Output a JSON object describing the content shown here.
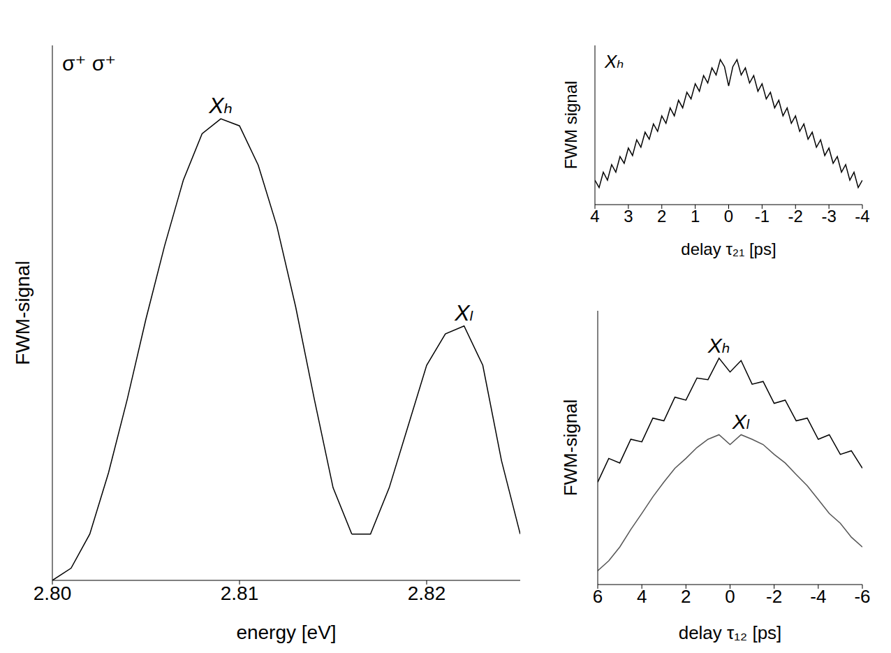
{
  "chart_data": [
    {
      "type": "line",
      "annotations": [
        "σ⁺ σ⁺"
      ],
      "x_label": "energy [eV]",
      "y_label": "FWM-signal",
      "x": [
        2.8,
        2.801,
        2.802,
        2.803,
        2.804,
        2.805,
        2.806,
        2.807,
        2.808,
        2.809,
        2.81,
        2.811,
        2.812,
        2.813,
        2.814,
        2.815,
        2.816,
        2.817,
        2.818,
        2.819,
        2.82,
        2.821,
        2.822,
        2.823,
        2.824,
        2.825
      ],
      "series": [
        {
          "name": "Xₕ",
          "color": "#000000",
          "values": [
            0.001,
            0.0012,
            0.002,
            0.005,
            0.015,
            0.05,
            0.15,
            0.4,
            0.8,
            1,
            0.9,
            0.5,
            0.2,
            0.06,
            0.015,
            0.004,
            0.002,
            null,
            null,
            null,
            null,
            null,
            null,
            null,
            null,
            null
          ]
        },
        {
          "name": "Xₗ",
          "color": "#000000",
          "values": [
            null,
            null,
            null,
            null,
            null,
            null,
            null,
            null,
            null,
            null,
            null,
            null,
            null,
            null,
            null,
            null,
            0.002,
            0.002,
            0.004,
            0.01,
            0.025,
            0.04,
            0.045,
            0.025,
            0.006,
            0.002
          ]
        }
      ],
      "xlim": [
        2.8,
        2.825
      ],
      "xticks": [
        {
          "value": 2.8,
          "label": "2.80"
        },
        2.81,
        2.82
      ],
      "ylim": [
        0.001,
        3
      ],
      "yticks": [
        0.01,
        0.1,
        1
      ],
      "log": "y",
      "tick_labels": "x"
    },
    {
      "type": "line",
      "x_label": "delay τ₁₂ [ps]",
      "y_label": "FWM-signal",
      "x": [
        -6,
        -5.5,
        -5,
        -4.5,
        -4,
        -3.5,
        -3,
        -2.5,
        -2,
        -1.5,
        -1,
        -0.5,
        0,
        0.5,
        1,
        1.5,
        2,
        2.5,
        3,
        3.5,
        4,
        4.5,
        5,
        5.5,
        6
      ],
      "series": [
        {
          "name": "Xₕ",
          "color": "#000000",
          "values": [
            0.03,
            0.05,
            0.045,
            0.08,
            0.07,
            0.13,
            0.12,
            0.22,
            0.2,
            0.38,
            0.35,
            0.7,
            0.5,
            0.75,
            0.4,
            0.42,
            0.22,
            0.24,
            0.12,
            0.13,
            0.065,
            0.07,
            0.035,
            0.04,
            0.02
          ]
        },
        {
          "name": "Xₗ",
          "color": "#555555",
          "values": [
            0.003,
            0.004,
            0.006,
            0.008,
            0.012,
            0.018,
            0.025,
            0.035,
            0.045,
            0.06,
            0.07,
            0.08,
            0.06,
            0.08,
            0.07,
            0.055,
            0.04,
            0.03,
            0.02,
            0.013,
            0.008,
            0.005,
            0.003,
            0.002,
            0.0015
          ]
        }
      ],
      "xlim": [
        6,
        -6
      ],
      "xticks": [
        6,
        4,
        2,
        0,
        -2,
        -4,
        -6
      ],
      "ylim": [
        0.001,
        3
      ],
      "yticks": [
        0.01,
        0.1,
        1
      ],
      "log": "y",
      "tick_labels": "x"
    },
    {
      "type": "line",
      "title": "Xₕ",
      "x_label": "delay τ₂₁ [ps]",
      "y_label": "FWM signal",
      "color": "#000000",
      "x": [
        -4,
        -3.875,
        -3.75,
        -3.625,
        -3.5,
        -3.375,
        -3.25,
        -3.125,
        -3,
        -2.875,
        -2.75,
        -2.625,
        -2.5,
        -2.375,
        -2.25,
        -2.125,
        -2,
        -1.875,
        -1.75,
        -1.625,
        -1.5,
        -1.375,
        -1.25,
        -1.125,
        -1,
        -0.875,
        -0.75,
        -0.625,
        -0.5,
        -0.375,
        -0.25,
        -0.125,
        0,
        0.125,
        0.25,
        0.375,
        0.5,
        0.625,
        0.75,
        0.875,
        1,
        1.125,
        1.25,
        1.375,
        1.5,
        1.625,
        1.75,
        1.875,
        2,
        2.125,
        2.25,
        2.375,
        2.5,
        2.625,
        2.75,
        2.875,
        3,
        3.125,
        3.25,
        3.375,
        3.5,
        3.625,
        3.75,
        3.875,
        4
      ],
      "values": [
        0.012,
        0.0092,
        0.016,
        0.012,
        0.021,
        0.016,
        0.028,
        0.022,
        0.038,
        0.029,
        0.051,
        0.039,
        0.067,
        0.052,
        0.09,
        0.069,
        0.12,
        0.092,
        0.16,
        0.12,
        0.21,
        0.16,
        0.28,
        0.22,
        0.38,
        0.29,
        0.51,
        0.39,
        0.67,
        0.52,
        0.9,
        0.7,
        0.35,
        0.7,
        0.9,
        0.52,
        0.67,
        0.39,
        0.51,
        0.29,
        0.38,
        0.22,
        0.28,
        0.16,
        0.21,
        0.12,
        0.16,
        0.092,
        0.12,
        0.069,
        0.09,
        0.052,
        0.067,
        0.039,
        0.051,
        0.029,
        0.038,
        0.022,
        0.028,
        0.016,
        0.021,
        0.012,
        0.016,
        0.0092,
        0.012
      ],
      "xlim": [
        4,
        -4
      ],
      "xticks": [
        4,
        3,
        2,
        1,
        0,
        -1,
        -2,
        -3,
        -4
      ],
      "ylim": [
        0.005,
        1.5
      ],
      "yticks": [
        0.01,
        0.1,
        1
      ],
      "log": "y",
      "tick_labels": "x"
    }
  ]
}
